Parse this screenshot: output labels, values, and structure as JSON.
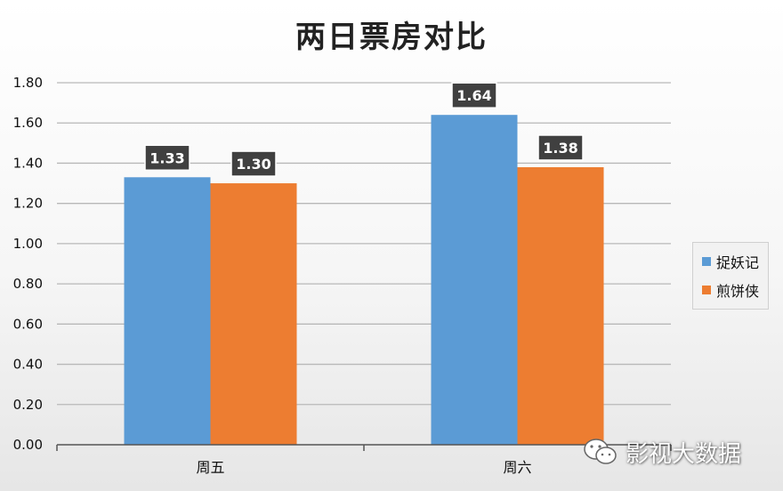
{
  "colors": {
    "series1": "#5b9bd5",
    "series2": "#ed7d31",
    "label_bg": "#404040"
  },
  "watermark": {
    "text": "影视大数据",
    "icon": "wechat-icon"
  },
  "chart_data": {
    "type": "bar",
    "title": "两日票房对比",
    "categories": [
      "周五",
      "周六"
    ],
    "series": [
      {
        "name": "捉妖记",
        "values": [
          1.33,
          1.64
        ]
      },
      {
        "name": "煎饼侠",
        "values": [
          1.3,
          1.38
        ]
      }
    ],
    "data_labels": [
      [
        "1.33",
        "1.64"
      ],
      [
        "1.30",
        "1.38"
      ]
    ],
    "yticks": [
      "0.00",
      "0.20",
      "0.40",
      "0.60",
      "0.80",
      "1.00",
      "1.20",
      "1.40",
      "1.60",
      "1.80"
    ],
    "ylim": [
      0,
      1.8
    ],
    "grid": true,
    "legend_position": "right"
  }
}
